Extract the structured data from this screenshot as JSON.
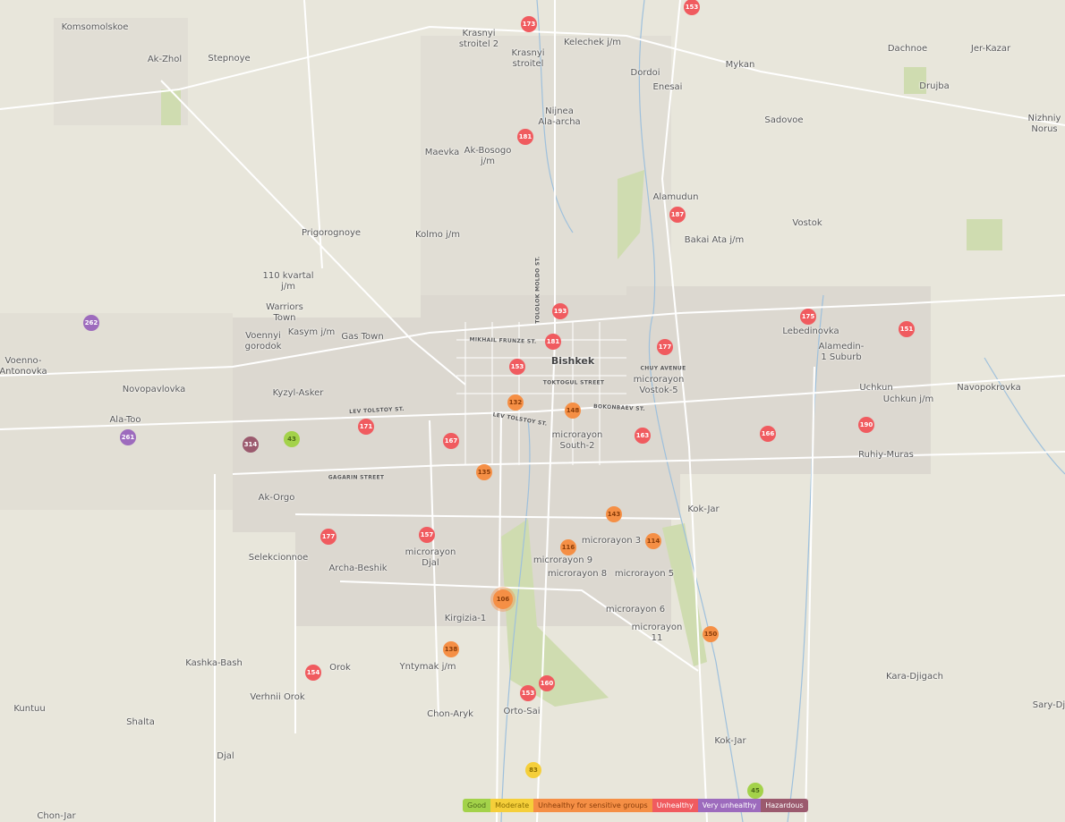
{
  "legend": [
    {
      "label": "Good",
      "color": "#a3d24a",
      "text": "#4d6b1a"
    },
    {
      "label": "Moderate",
      "color": "#f5cf3a",
      "text": "#8a6d00"
    },
    {
      "label": "Unhealthy for sensitive groups",
      "color": "#f58f45",
      "text": "#8a3d0a"
    },
    {
      "label": "Unhealthy",
      "color": "#f05b5f",
      "text": "#ffffff"
    },
    {
      "label": "Very unhealthy",
      "color": "#9d6bbd",
      "text": "#ffffff"
    },
    {
      "label": "Hazardous",
      "color": "#9b5a6e",
      "text": "#ffffff"
    }
  ],
  "places": [
    "Komsomolskoe",
    "Ak-Zhol",
    "Stepnoye",
    "Krasnyi\nstroitel 2",
    "Krasnyi\nstroitel",
    "Kelechek j/m",
    "Dordoi",
    "Enesai",
    "Mykan",
    "Dachnoe",
    "Jer-Kazar",
    "Drujba",
    "Nizhniy\nNorus",
    "Sadovoe",
    "Nijnea\nAla-archa",
    "Ak-Bosogo\nj/m",
    "Maevka",
    "Alamudun",
    "Bakai Ata j/m",
    "Vostok",
    "Prigorognoye",
    "Kolmo j/m",
    "110 kvartal\nj/m",
    "Warriors\nTown",
    "Voennyi\ngorodok",
    "Kasym j/m",
    "Gas Town",
    "Voenno-\nAntonovka",
    "Novopavlovka",
    "Kyzyl-Asker",
    "Ala-Too",
    "Bishkek",
    "microrayon\nVostok-5",
    "microrayon\nSouth-2",
    "Lebedinovka",
    "Alamedin-\n1 Suburb",
    "Uchkun",
    "Uchkun j/m",
    "Navopokrovka",
    "Ruhiy-Muras",
    "Ak-Orgo",
    "Selekcionnoe",
    "Archa-Beshik",
    "microrayon\nDjal",
    "microrayon 9",
    "microrayon 8",
    "microrayon 5",
    "microrayon 3",
    "Kok-Jar",
    "microrayon 6",
    "microrayon\n11",
    "Kirgizia-1",
    "Yntymak j/m",
    "Orok",
    "Kashka-Bash",
    "Verhnii Orok",
    "Kuntuu",
    "Shalta",
    "Djal",
    "Chon-Aryk",
    "Orto-Sai",
    "Kara-Djigach",
    "Sary-Dja",
    "Kok-Jar",
    "Chon-Jar"
  ],
  "streets": [
    "LEV TOLSTOY ST.",
    "LEV TOLSTOY ST.",
    "GAGARIN STREET",
    "MIKHAIL FRUNZE ST.",
    "TOKTOGUL STREET",
    "BOKONBAEV ST.",
    "CHUY AVENUE",
    "TOLOLOK MOLDO ST."
  ],
  "markers": [
    {
      "aqi": 173,
      "level": "Unhealthy"
    },
    {
      "aqi": 153,
      "level": "Unhealthy"
    },
    {
      "aqi": 181,
      "level": "Unhealthy"
    },
    {
      "aqi": 187,
      "level": "Unhealthy"
    },
    {
      "aqi": 262,
      "level": "Very unhealthy"
    },
    {
      "aqi": 193,
      "level": "Unhealthy"
    },
    {
      "aqi": 181,
      "level": "Unhealthy"
    },
    {
      "aqi": 153,
      "level": "Unhealthy"
    },
    {
      "aqi": 177,
      "level": "Unhealthy"
    },
    {
      "aqi": 175,
      "level": "Unhealthy"
    },
    {
      "aqi": 151,
      "level": "Unhealthy"
    },
    {
      "aqi": 132,
      "level": "Unhealthy for sensitive groups"
    },
    {
      "aqi": 148,
      "level": "Unhealthy for sensitive groups"
    },
    {
      "aqi": 261,
      "level": "Very unhealthy"
    },
    {
      "aqi": 314,
      "level": "Hazardous"
    },
    {
      "aqi": 43,
      "level": "Good"
    },
    {
      "aqi": 171,
      "level": "Unhealthy"
    },
    {
      "aqi": 167,
      "level": "Unhealthy"
    },
    {
      "aqi": 163,
      "level": "Unhealthy"
    },
    {
      "aqi": 166,
      "level": "Unhealthy"
    },
    {
      "aqi": 190,
      "level": "Unhealthy"
    },
    {
      "aqi": 135,
      "level": "Unhealthy for sensitive groups"
    },
    {
      "aqi": 143,
      "level": "Unhealthy for sensitive groups"
    },
    {
      "aqi": 177,
      "level": "Unhealthy"
    },
    {
      "aqi": 157,
      "level": "Unhealthy"
    },
    {
      "aqi": 116,
      "level": "Unhealthy for sensitive groups"
    },
    {
      "aqi": 114,
      "level": "Unhealthy for sensitive groups"
    },
    {
      "aqi": 106,
      "level": "Unhealthy for sensitive groups"
    },
    {
      "aqi": 150,
      "level": "Unhealthy for sensitive groups"
    },
    {
      "aqi": 138,
      "level": "Unhealthy for sensitive groups"
    },
    {
      "aqi": 154,
      "level": "Unhealthy"
    },
    {
      "aqi": 160,
      "level": "Unhealthy"
    },
    {
      "aqi": 153,
      "level": "Unhealthy"
    },
    {
      "aqi": 83,
      "level": "Moderate"
    },
    {
      "aqi": 45,
      "level": "Good"
    }
  ]
}
